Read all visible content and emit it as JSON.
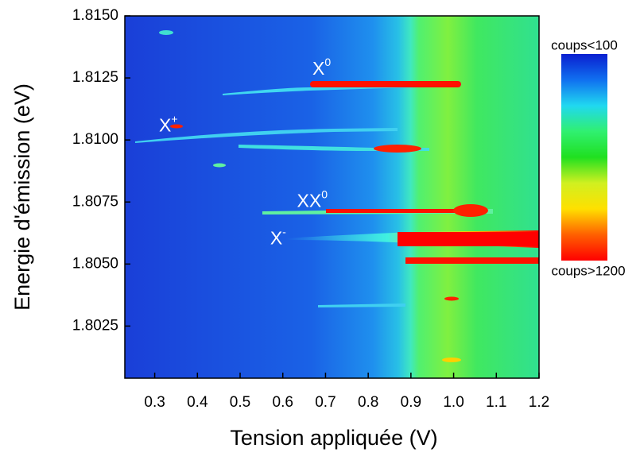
{
  "chart_data": {
    "type": "heatmap",
    "xlabel": "Tension appliquée (V)",
    "ylabel": "Energie d'émission (eV)",
    "xlim": [
      0.23,
      1.2
    ],
    "ylim": [
      1.8004,
      1.815
    ],
    "xticks": [
      0.3,
      0.4,
      0.5,
      0.6,
      0.7,
      0.8,
      0.9,
      {
        "value": 1,
        "label": "1.0"
      },
      1.1,
      1.2
    ],
    "yticks": [
      {
        "value": 1.8025,
        "label": "1.8025"
      },
      {
        "value": 1.805,
        "label": "1.8050"
      },
      {
        "value": 1.8075,
        "label": "1.8075"
      },
      {
        "value": 1.81,
        "label": "1.8100"
      },
      1.8125,
      {
        "value": 1.815,
        "label": "1.8150"
      }
    ],
    "annotations": [
      {
        "text": "X",
        "sup": "0",
        "x": 0.691,
        "y": 1.81283
      },
      {
        "text": "X",
        "sup": "+",
        "x": 0.332,
        "y": 1.81053
      },
      {
        "text": "XX",
        "sup": "0",
        "x": 0.669,
        "y": 1.80749
      },
      {
        "text": "X",
        "sup": "-",
        "x": 0.589,
        "y": 1.80598
      }
    ],
    "colorbar": {
      "top_label": "coups<100",
      "bottom_label": "coups>1200",
      "colors": [
        "#0a1fd0",
        "#1070f0",
        "#20d8f0",
        "#30f070",
        "#20e020",
        "#d0f020",
        "#ffe000",
        "#ff6000",
        "#ff0000"
      ]
    }
  }
}
